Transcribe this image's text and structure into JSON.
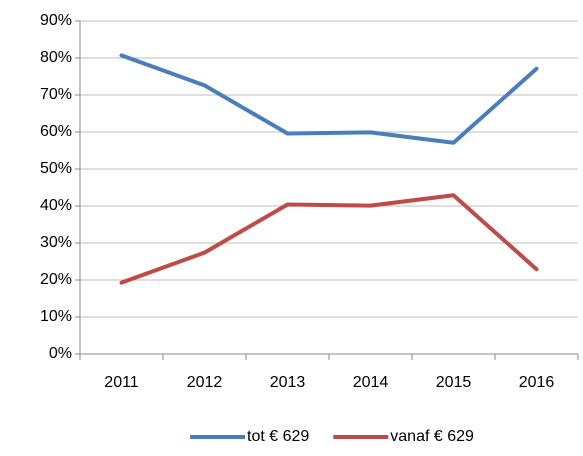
{
  "chart_data": {
    "type": "line",
    "categories": [
      "2011",
      "2012",
      "2013",
      "2014",
      "2015",
      "2016"
    ],
    "series": [
      {
        "name": "tot € 629",
        "color": "#4a7ebb",
        "values": [
          80.7,
          72.6,
          59.6,
          59.9,
          57.1,
          77.1
        ]
      },
      {
        "name": "vanaf € 629",
        "color": "#be4b48",
        "values": [
          19.3,
          27.4,
          40.4,
          40.1,
          42.9,
          22.9
        ]
      }
    ],
    "ylim": [
      0,
      90
    ],
    "yticks": [
      {
        "value": 0,
        "label": "0%"
      },
      {
        "value": 10,
        "label": "10%"
      },
      {
        "value": 20,
        "label": "20%"
      },
      {
        "value": 30,
        "label": "30%"
      },
      {
        "value": 40,
        "label": "40%"
      },
      {
        "value": 50,
        "label": "50%"
      },
      {
        "value": 60,
        "label": "60%"
      },
      {
        "value": 70,
        "label": "70%"
      },
      {
        "value": 80,
        "label": "80%"
      },
      {
        "value": 90,
        "label": "90%"
      }
    ],
    "grid": true,
    "legend": "bottom"
  }
}
